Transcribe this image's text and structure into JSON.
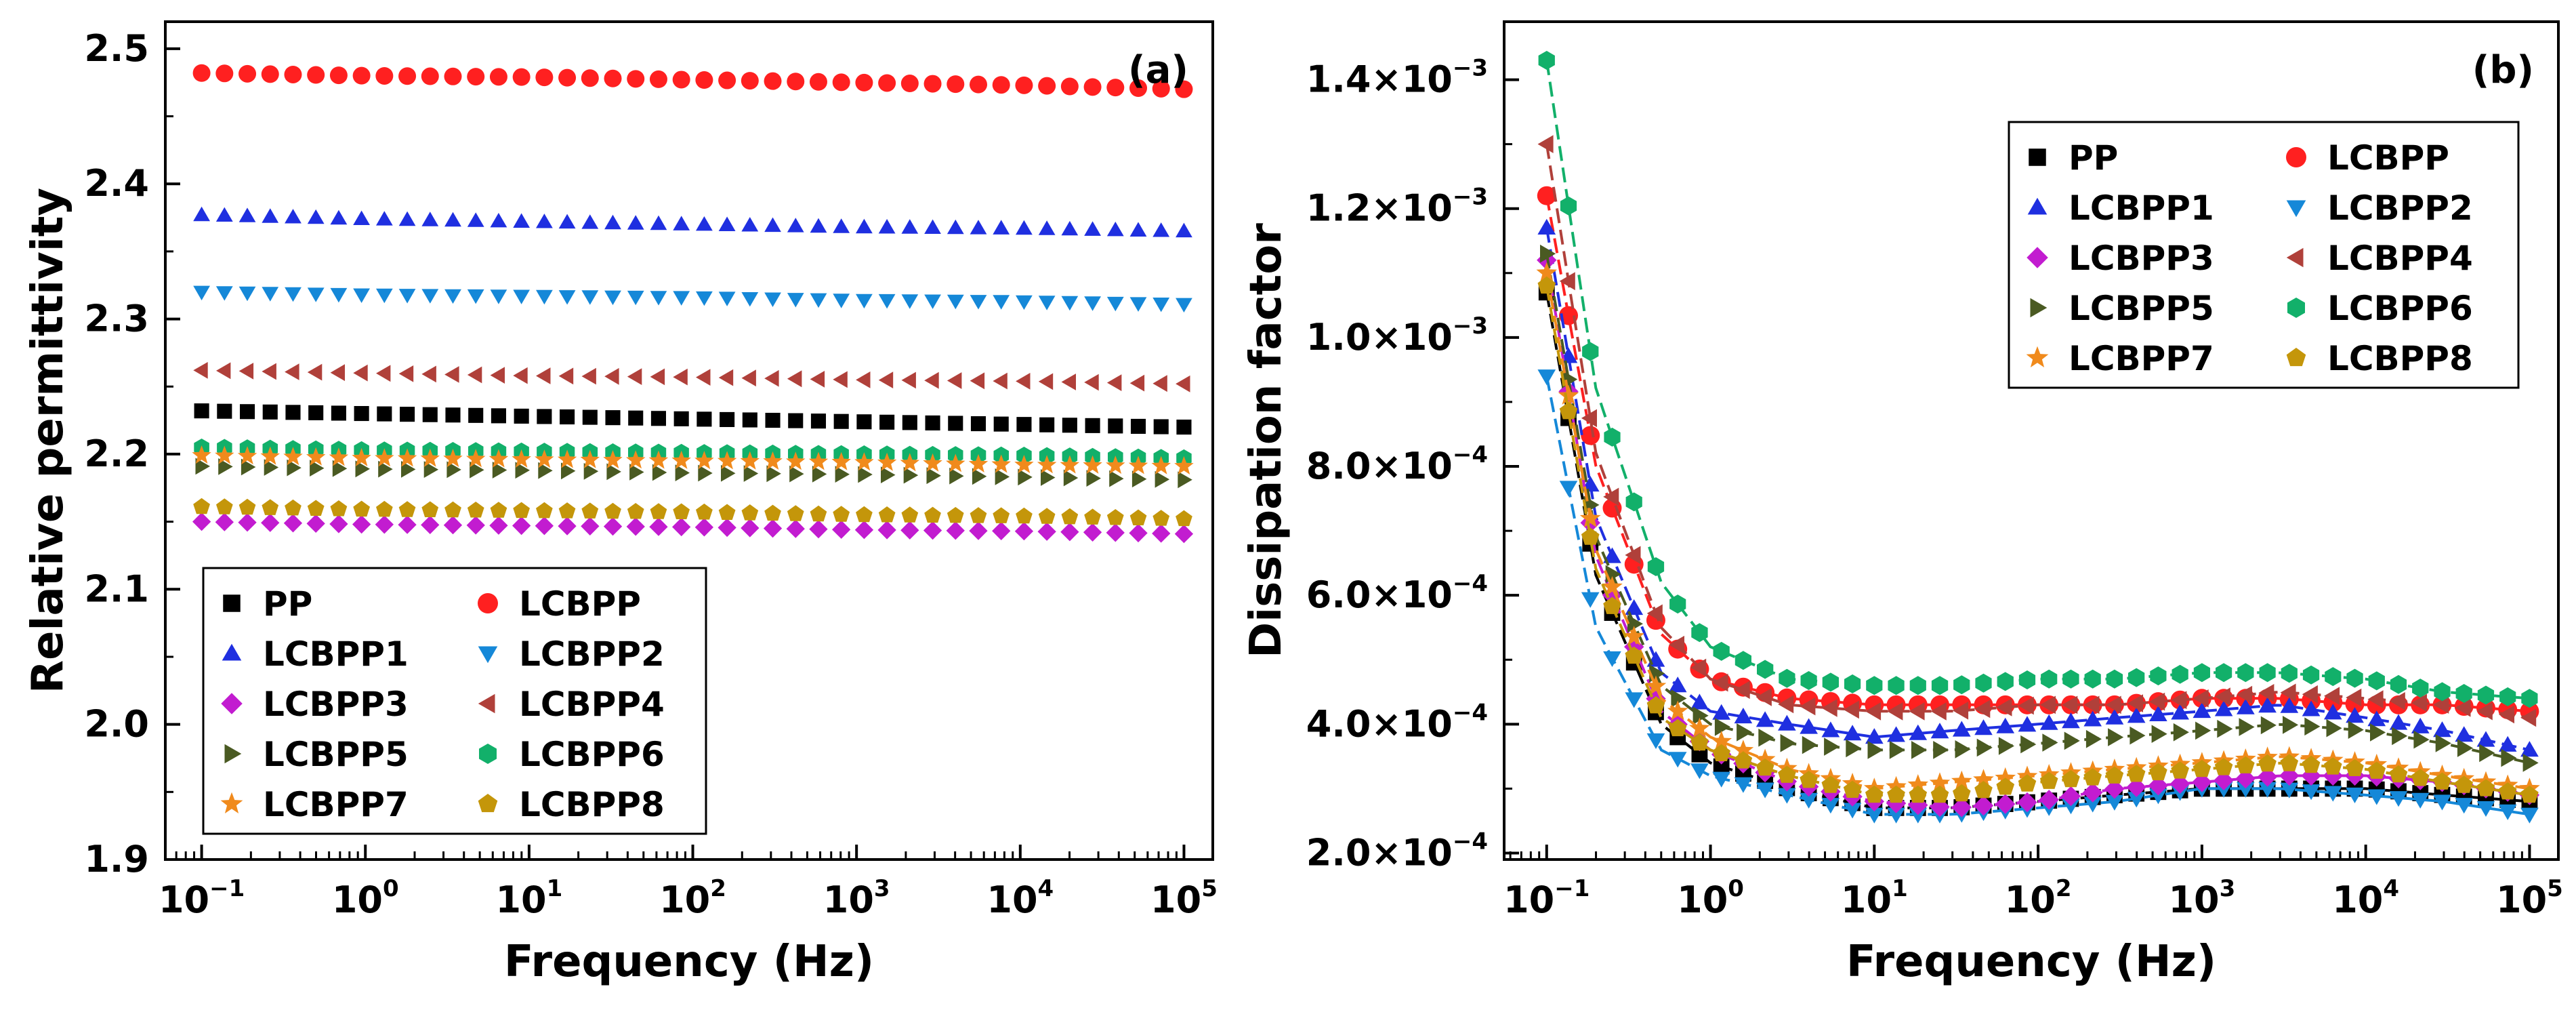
{
  "chart_data": [
    {
      "panel": "(a)",
      "type": "scatter",
      "xlabel": "Frequency (Hz)",
      "ylabel": "Relative permittivity",
      "xscale": "log",
      "xlim": [
        0.06,
        150000
      ],
      "ylim": [
        1.9,
        2.52
      ],
      "xticks": [
        {
          "value": 0.1,
          "base": "10",
          "exp": "−1"
        },
        {
          "value": 1,
          "base": "10",
          "exp": "0"
        },
        {
          "value": 10,
          "base": "10",
          "exp": "1"
        },
        {
          "value": 100,
          "base": "10",
          "exp": "2"
        },
        {
          "value": 1000,
          "base": "10",
          "exp": "3"
        },
        {
          "value": 10000,
          "base": "10",
          "exp": "4"
        },
        {
          "value": 100000,
          "base": "10",
          "exp": "5"
        }
      ],
      "yticks": [
        {
          "value": 1.9,
          "label": "1.9"
        },
        {
          "value": 2.0,
          "label": "2.0"
        },
        {
          "value": 2.1,
          "label": "2.1"
        },
        {
          "value": 2.2,
          "label": "2.2"
        },
        {
          "value": 2.3,
          "label": "2.3"
        },
        {
          "value": 2.4,
          "label": "2.4"
        },
        {
          "value": 2.5,
          "label": "2.5"
        }
      ],
      "legend_position": "bottom-left",
      "x": [
        0.1,
        1,
        10,
        100,
        1000,
        10000,
        100000
      ],
      "series": [
        {
          "name": "PP",
          "values": [
            2.232,
            2.23,
            2.228,
            2.226,
            2.224,
            2.222,
            2.22
          ]
        },
        {
          "name": "LCBPP",
          "values": [
            2.482,
            2.48,
            2.479,
            2.477,
            2.475,
            2.473,
            2.47
          ]
        },
        {
          "name": "LCBPP1",
          "values": [
            2.377,
            2.374,
            2.372,
            2.37,
            2.368,
            2.367,
            2.365
          ]
        },
        {
          "name": "LCBPP2",
          "values": [
            2.32,
            2.318,
            2.317,
            2.316,
            2.314,
            2.313,
            2.311
          ]
        },
        {
          "name": "LCBPP3",
          "values": [
            2.15,
            2.148,
            2.147,
            2.146,
            2.144,
            2.143,
            2.141
          ]
        },
        {
          "name": "LCBPP4",
          "values": [
            2.262,
            2.26,
            2.258,
            2.257,
            2.255,
            2.254,
            2.252
          ]
        },
        {
          "name": "LCBPP5",
          "values": [
            2.191,
            2.189,
            2.188,
            2.186,
            2.185,
            2.183,
            2.181
          ]
        },
        {
          "name": "LCBPP6",
          "values": [
            2.205,
            2.203,
            2.202,
            2.201,
            2.2,
            2.199,
            2.197
          ]
        },
        {
          "name": "LCBPP7",
          "values": [
            2.199,
            2.197,
            2.196,
            2.195,
            2.194,
            2.192,
            2.191
          ]
        },
        {
          "name": "LCBPP8",
          "values": [
            2.161,
            2.159,
            2.158,
            2.157,
            2.155,
            2.154,
            2.152
          ]
        }
      ]
    },
    {
      "panel": "(b)",
      "type": "line",
      "xlabel": "Frequency (Hz)",
      "ylabel": "Dissipation factor",
      "xscale": "log",
      "xlim": [
        0.055,
        150000
      ],
      "ylim": [
        0.00019,
        0.00149
      ],
      "xticks": [
        {
          "value": 0.1,
          "base": "10",
          "exp": "−1"
        },
        {
          "value": 1,
          "base": "10",
          "exp": "0"
        },
        {
          "value": 10,
          "base": "10",
          "exp": "1"
        },
        {
          "value": 100,
          "base": "10",
          "exp": "2"
        },
        {
          "value": 1000,
          "base": "10",
          "exp": "3"
        },
        {
          "value": 10000,
          "base": "10",
          "exp": "4"
        },
        {
          "value": 100000,
          "base": "10",
          "exp": "5"
        }
      ],
      "yticks": [
        {
          "value": 0.0002,
          "mantissa": "2.0×10",
          "exp": "−4"
        },
        {
          "value": 0.0004,
          "mantissa": "4.0×10",
          "exp": "−4"
        },
        {
          "value": 0.0006,
          "mantissa": "6.0×10",
          "exp": "−4"
        },
        {
          "value": 0.0008,
          "mantissa": "8.0×10",
          "exp": "−4"
        },
        {
          "value": 0.001,
          "mantissa": "1.0×10",
          "exp": "−3"
        },
        {
          "value": 0.0012,
          "mantissa": "1.2×10",
          "exp": "−3"
        },
        {
          "value": 0.0014,
          "mantissa": "1.4×10",
          "exp": "−3"
        }
      ],
      "legend_position": "top-right",
      "x": [
        0.1,
        0.2,
        0.5,
        1,
        3,
        10,
        30,
        100,
        300,
        1000,
        3000,
        10000,
        30000,
        100000
      ],
      "series": [
        {
          "name": "PP",
          "values": [
            0.00107,
            0.00063,
            0.0004,
            0.00034,
            0.0003,
            0.00027,
            0.00027,
            0.00028,
            0.00029,
            0.0003,
            0.0003,
            0.0003,
            0.00029,
            0.00028
          ]
        },
        {
          "name": "LCBPP",
          "values": [
            0.00122,
            0.0008,
            0.00054,
            0.00047,
            0.00044,
            0.00043,
            0.00043,
            0.00043,
            0.00043,
            0.00044,
            0.00044,
            0.00043,
            0.00043,
            0.00042
          ]
        },
        {
          "name": "LCBPP1",
          "values": [
            0.00117,
            0.00072,
            0.00048,
            0.00042,
            0.0004,
            0.00038,
            0.00039,
            0.0004,
            0.00041,
            0.00042,
            0.00043,
            0.00041,
            0.00039,
            0.00036
          ]
        },
        {
          "name": "LCBPP2",
          "values": [
            0.00094,
            0.00055,
            0.00036,
            0.00032,
            0.00029,
            0.00026,
            0.00026,
            0.00027,
            0.00028,
            0.0003,
            0.0003,
            0.00029,
            0.00028,
            0.00026
          ]
        },
        {
          "name": "LCBPP3",
          "values": [
            0.00112,
            0.00066,
            0.00042,
            0.00036,
            0.00031,
            0.00028,
            0.00027,
            0.00028,
            0.0003,
            0.00031,
            0.00032,
            0.00032,
            0.00031,
            0.00029
          ]
        },
        {
          "name": "LCBPP4",
          "values": [
            0.0013,
            0.00082,
            0.00055,
            0.00047,
            0.00043,
            0.00042,
            0.00042,
            0.00043,
            0.00043,
            0.00044,
            0.00045,
            0.00044,
            0.00043,
            0.00041
          ]
        },
        {
          "name": "LCBPP5",
          "values": [
            0.00113,
            0.00069,
            0.00046,
            0.0004,
            0.00037,
            0.00036,
            0.00036,
            0.00037,
            0.00038,
            0.00039,
            0.0004,
            0.00039,
            0.00037,
            0.00034
          ]
        },
        {
          "name": "LCBPP6",
          "values": [
            0.00143,
            0.00092,
            0.00062,
            0.00052,
            0.00047,
            0.00046,
            0.00046,
            0.00047,
            0.00047,
            0.00048,
            0.00048,
            0.00047,
            0.00045,
            0.00044
          ]
        },
        {
          "name": "LCBPP7",
          "values": [
            0.0011,
            0.00067,
            0.00044,
            0.00038,
            0.00033,
            0.0003,
            0.00031,
            0.00032,
            0.00033,
            0.00034,
            0.00035,
            0.00034,
            0.00032,
            0.0003
          ]
        },
        {
          "name": "LCBPP8",
          "values": [
            0.00108,
            0.00064,
            0.00041,
            0.00036,
            0.00032,
            0.00029,
            0.00029,
            0.00031,
            0.00032,
            0.00033,
            0.00034,
            0.00033,
            0.00031,
            0.00029
          ]
        }
      ]
    }
  ],
  "styles": {
    "PP": {
      "color": "#000000",
      "marker": "square"
    },
    "LCBPP": {
      "color": "#ff2020",
      "marker": "circle"
    },
    "LCBPP1": {
      "color": "#1f2fe0",
      "marker": "triangle-up"
    },
    "LCBPP2": {
      "color": "#1588d8",
      "marker": "triangle-down"
    },
    "LCBPP3": {
      "color": "#c21cd0",
      "marker": "diamond"
    },
    "LCBPP4": {
      "color": "#b0403a",
      "marker": "triangle-left"
    },
    "LCBPP5": {
      "color": "#4a5a22",
      "marker": "triangle-right"
    },
    "LCBPP6": {
      "color": "#12b06a",
      "marker": "hexagon"
    },
    "LCBPP7": {
      "color": "#f08a1c",
      "marker": "star"
    },
    "LCBPP8": {
      "color": "#c4960a",
      "marker": "pentagon"
    }
  }
}
